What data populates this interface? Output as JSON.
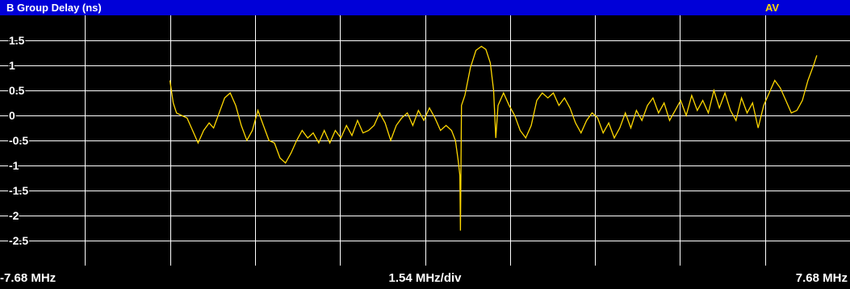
{
  "header": {
    "title": "B  Group Delay (ns)",
    "trace_mode": "AV"
  },
  "footer": {
    "start_freq": "-7.68 MHz",
    "span_per_div": "1.54 MHz/div",
    "stop_freq": "7.68 MHz"
  },
  "colors": {
    "background": "#000000",
    "title_bar": "#0000d8",
    "grid": "#ffffff",
    "trace": "#ffd800",
    "trace_label": "#ffd800"
  },
  "chart_data": {
    "type": "line",
    "xlabel": "",
    "ylabel": "",
    "xlim": [
      -7.68,
      7.68
    ],
    "ylim": [
      -3.0,
      2.0
    ],
    "grid": true,
    "y_ticks": [
      1.5,
      1,
      0.5,
      0,
      -0.5,
      -1,
      -1.5,
      -2,
      -2.5
    ],
    "y_tick_labels": [
      "1.5",
      "1",
      "0.5",
      "0",
      "-0.5",
      "-1",
      "-1.5",
      "-2",
      "-2.5"
    ],
    "series": [
      {
        "values": [
          [
            -4.61,
            0.7
          ],
          [
            -4.55,
            0.25
          ],
          [
            -4.49,
            0.05
          ],
          [
            -4.4,
            0.0
          ],
          [
            -4.3,
            -0.05
          ],
          [
            -4.2,
            -0.3
          ],
          [
            -4.1,
            -0.55
          ],
          [
            -4.0,
            -0.3
          ],
          [
            -3.9,
            -0.15
          ],
          [
            -3.82,
            -0.25
          ],
          [
            -3.72,
            0.05
          ],
          [
            -3.62,
            0.35
          ],
          [
            -3.52,
            0.45
          ],
          [
            -3.42,
            0.2
          ],
          [
            -3.32,
            -0.2
          ],
          [
            -3.22,
            -0.5
          ],
          [
            -3.12,
            -0.3
          ],
          [
            -3.02,
            0.1
          ],
          [
            -2.92,
            -0.2
          ],
          [
            -2.82,
            -0.5
          ],
          [
            -2.72,
            -0.55
          ],
          [
            -2.62,
            -0.85
          ],
          [
            -2.52,
            -0.95
          ],
          [
            -2.42,
            -0.75
          ],
          [
            -2.32,
            -0.5
          ],
          [
            -2.22,
            -0.3
          ],
          [
            -2.12,
            -0.45
          ],
          [
            -2.02,
            -0.35
          ],
          [
            -1.92,
            -0.55
          ],
          [
            -1.82,
            -0.3
          ],
          [
            -1.72,
            -0.55
          ],
          [
            -1.62,
            -0.3
          ],
          [
            -1.52,
            -0.45
          ],
          [
            -1.42,
            -0.2
          ],
          [
            -1.32,
            -0.4
          ],
          [
            -1.22,
            -0.1
          ],
          [
            -1.12,
            -0.35
          ],
          [
            -1.02,
            -0.3
          ],
          [
            -0.92,
            -0.2
          ],
          [
            -0.82,
            0.05
          ],
          [
            -0.72,
            -0.15
          ],
          [
            -0.62,
            -0.5
          ],
          [
            -0.52,
            -0.2
          ],
          [
            -0.42,
            -0.05
          ],
          [
            -0.32,
            0.05
          ],
          [
            -0.22,
            -0.2
          ],
          [
            -0.12,
            0.1
          ],
          [
            -0.02,
            -0.1
          ],
          [
            0.08,
            0.15
          ],
          [
            0.18,
            -0.05
          ],
          [
            0.28,
            -0.3
          ],
          [
            0.38,
            -0.2
          ],
          [
            0.48,
            -0.3
          ],
          [
            0.55,
            -0.5
          ],
          [
            0.6,
            -0.9
          ],
          [
            0.63,
            -1.2
          ],
          [
            0.64,
            -2.3
          ],
          [
            0.66,
            0.2
          ],
          [
            0.72,
            0.4
          ],
          [
            0.82,
            0.95
          ],
          [
            0.92,
            1.3
          ],
          [
            1.02,
            1.38
          ],
          [
            1.1,
            1.32
          ],
          [
            1.18,
            1.05
          ],
          [
            1.24,
            0.5
          ],
          [
            1.28,
            -0.45
          ],
          [
            1.32,
            0.2
          ],
          [
            1.42,
            0.45
          ],
          [
            1.52,
            0.2
          ],
          [
            1.62,
            0.0
          ],
          [
            1.72,
            -0.3
          ],
          [
            1.82,
            -0.45
          ],
          [
            1.92,
            -0.2
          ],
          [
            2.02,
            0.3
          ],
          [
            2.12,
            0.45
          ],
          [
            2.22,
            0.35
          ],
          [
            2.32,
            0.45
          ],
          [
            2.42,
            0.2
          ],
          [
            2.52,
            0.35
          ],
          [
            2.62,
            0.15
          ],
          [
            2.72,
            -0.15
          ],
          [
            2.82,
            -0.35
          ],
          [
            2.92,
            -0.1
          ],
          [
            3.02,
            0.05
          ],
          [
            3.12,
            -0.05
          ],
          [
            3.22,
            -0.35
          ],
          [
            3.32,
            -0.15
          ],
          [
            3.42,
            -0.45
          ],
          [
            3.52,
            -0.25
          ],
          [
            3.62,
            0.05
          ],
          [
            3.72,
            -0.25
          ],
          [
            3.82,
            0.1
          ],
          [
            3.92,
            -0.1
          ],
          [
            4.02,
            0.2
          ],
          [
            4.12,
            0.35
          ],
          [
            4.22,
            0.05
          ],
          [
            4.32,
            0.25
          ],
          [
            4.42,
            -0.1
          ],
          [
            4.52,
            0.1
          ],
          [
            4.62,
            0.3
          ],
          [
            4.72,
            0.0
          ],
          [
            4.82,
            0.4
          ],
          [
            4.92,
            0.1
          ],
          [
            5.02,
            0.3
          ],
          [
            5.12,
            0.05
          ],
          [
            5.22,
            0.5
          ],
          [
            5.32,
            0.15
          ],
          [
            5.42,
            0.45
          ],
          [
            5.52,
            0.1
          ],
          [
            5.62,
            -0.1
          ],
          [
            5.72,
            0.35
          ],
          [
            5.82,
            0.05
          ],
          [
            5.92,
            0.25
          ],
          [
            6.02,
            -0.25
          ],
          [
            6.12,
            0.2
          ],
          [
            6.22,
            0.45
          ],
          [
            6.32,
            0.7
          ],
          [
            6.42,
            0.55
          ],
          [
            6.52,
            0.3
          ],
          [
            6.62,
            0.05
          ],
          [
            6.72,
            0.1
          ],
          [
            6.82,
            0.3
          ],
          [
            6.92,
            0.7
          ],
          [
            7.02,
            1.0
          ],
          [
            7.08,
            1.2
          ]
        ]
      }
    ]
  }
}
